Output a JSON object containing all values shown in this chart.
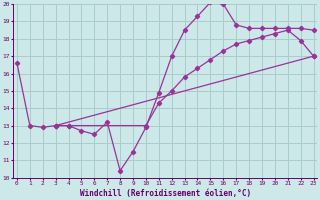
{
  "xlabel": "Windchill (Refroidissement éolien,°C)",
  "xlim": [
    -0.3,
    23.3
  ],
  "ylim": [
    10,
    20
  ],
  "yticks": [
    10,
    11,
    12,
    13,
    14,
    15,
    16,
    17,
    18,
    19,
    20
  ],
  "xticks": [
    0,
    1,
    2,
    3,
    4,
    5,
    6,
    7,
    8,
    9,
    10,
    11,
    12,
    13,
    14,
    15,
    16,
    17,
    18,
    19,
    20,
    21,
    22,
    23
  ],
  "bg_color": "#cce8e8",
  "line_color": "#993399",
  "grid_color": "#aacccc",
  "line1_x": [
    0,
    1,
    2,
    3,
    4,
    5,
    6,
    7,
    8,
    9,
    10,
    11,
    12,
    13,
    14,
    15,
    16,
    17,
    18,
    19,
    20,
    21,
    22,
    23
  ],
  "line1_y": [
    16.6,
    13.0,
    12.9,
    13.0,
    13.0,
    12.7,
    12.5,
    13.2,
    10.4,
    11.5,
    12.9,
    14.9,
    17.0,
    18.5,
    19.3,
    20.1,
    20.0,
    18.8,
    18.6,
    18.6,
    18.6,
    18.6,
    18.6,
    18.5
  ],
  "line2_x": [
    3,
    4,
    10,
    11,
    12,
    13,
    14,
    15,
    16,
    17,
    18,
    19,
    20,
    21,
    22,
    23
  ],
  "line2_y": [
    13.0,
    13.0,
    13.0,
    14.3,
    15.0,
    15.8,
    16.3,
    16.8,
    17.3,
    17.7,
    17.9,
    18.1,
    18.3,
    18.5,
    17.9,
    17.0
  ],
  "line3_x": [
    3,
    23
  ],
  "line3_y": [
    13.0,
    17.0
  ]
}
